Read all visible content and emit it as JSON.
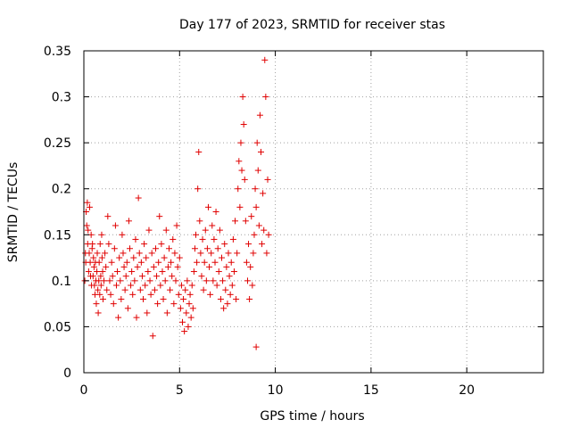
{
  "chart_data": {
    "type": "scatter",
    "title": "Day 177 of 2023, SRMTID for receiver stas",
    "xlabel": "GPS time / hours",
    "ylabel": "SRMTID / TECUs",
    "xlim": [
      0,
      24
    ],
    "ylim": [
      0,
      0.35
    ],
    "xticks": [
      0,
      5,
      10,
      15,
      20
    ],
    "xtick_labels": [
      "0",
      "5",
      "10",
      "15",
      "20"
    ],
    "yticks": [
      0,
      0.05,
      0.1,
      0.15,
      0.2,
      0.25,
      0.3,
      0.35
    ],
    "ytick_labels": [
      "0",
      "0.05",
      "0.1",
      "0.15",
      "0.2",
      "0.25",
      "0.3",
      "0.35"
    ],
    "grid": true,
    "legend": "none",
    "marker": "plus",
    "color": "#e00000",
    "series": [
      {
        "points": [
          [
            0.05,
            0.1
          ],
          [
            0.08,
            0.13
          ],
          [
            0.1,
            0.12
          ],
          [
            0.12,
            0.175
          ],
          [
            0.15,
            0.16
          ],
          [
            0.18,
            0.185
          ],
          [
            0.2,
            0.14
          ],
          [
            0.22,
            0.155
          ],
          [
            0.25,
            0.11
          ],
          [
            0.28,
            0.13
          ],
          [
            0.3,
            0.18
          ],
          [
            0.33,
            0.12
          ],
          [
            0.35,
            0.105
          ],
          [
            0.38,
            0.15
          ],
          [
            0.4,
            0.095
          ],
          [
            0.43,
            0.135
          ],
          [
            0.45,
            0.14
          ],
          [
            0.48,
            0.105
          ],
          [
            0.5,
            0.125
          ],
          [
            0.53,
            0.115
          ],
          [
            0.55,
            0.095
          ],
          [
            0.58,
            0.085
          ],
          [
            0.6,
            0.12
          ],
          [
            0.63,
            0.1
          ],
          [
            0.65,
            0.075
          ],
          [
            0.68,
            0.11
          ],
          [
            0.7,
            0.13
          ],
          [
            0.73,
            0.09
          ],
          [
            0.75,
            0.065
          ],
          [
            0.78,
            0.1
          ],
          [
            0.8,
            0.12
          ],
          [
            0.83,
            0.085
          ],
          [
            0.85,
            0.14
          ],
          [
            0.88,
            0.105
          ],
          [
            0.9,
            0.095
          ],
          [
            0.93,
            0.15
          ],
          [
            0.95,
            0.125
          ],
          [
            0.98,
            0.11
          ],
          [
            1.0,
            0.08
          ],
          [
            1.05,
            0.1
          ],
          [
            1.1,
            0.13
          ],
          [
            1.15,
            0.115
          ],
          [
            1.2,
            0.09
          ],
          [
            1.25,
            0.17
          ],
          [
            1.3,
            0.14
          ],
          [
            1.35,
            0.1
          ],
          [
            1.4,
            0.085
          ],
          [
            1.45,
            0.12
          ],
          [
            1.5,
            0.105
          ],
          [
            1.55,
            0.075
          ],
          [
            1.6,
            0.135
          ],
          [
            1.65,
            0.16
          ],
          [
            1.7,
            0.095
          ],
          [
            1.75,
            0.11
          ],
          [
            1.8,
            0.06
          ],
          [
            1.85,
            0.125
          ],
          [
            1.9,
            0.1
          ],
          [
            1.95,
            0.08
          ],
          [
            2.0,
            0.15
          ],
          [
            2.05,
            0.13
          ],
          [
            2.1,
            0.115
          ],
          [
            2.15,
            0.09
          ],
          [
            2.2,
            0.105
          ],
          [
            2.25,
            0.12
          ],
          [
            2.3,
            0.07
          ],
          [
            2.35,
            0.165
          ],
          [
            2.4,
            0.135
          ],
          [
            2.45,
            0.095
          ],
          [
            2.5,
            0.11
          ],
          [
            2.55,
            0.085
          ],
          [
            2.6,
            0.125
          ],
          [
            2.65,
            0.1
          ],
          [
            2.7,
            0.145
          ],
          [
            2.75,
            0.06
          ],
          [
            2.8,
            0.115
          ],
          [
            2.85,
            0.19
          ],
          [
            2.9,
            0.13
          ],
          [
            2.95,
            0.09
          ],
          [
            3.0,
            0.12
          ],
          [
            3.05,
            0.105
          ],
          [
            3.1,
            0.08
          ],
          [
            3.15,
            0.14
          ],
          [
            3.2,
            0.095
          ],
          [
            3.25,
            0.125
          ],
          [
            3.3,
            0.065
          ],
          [
            3.35,
            0.11
          ],
          [
            3.4,
            0.155
          ],
          [
            3.45,
            0.1
          ],
          [
            3.5,
            0.085
          ],
          [
            3.55,
            0.13
          ],
          [
            3.6,
            0.04
          ],
          [
            3.65,
            0.115
          ],
          [
            3.7,
            0.09
          ],
          [
            3.75,
            0.135
          ],
          [
            3.8,
            0.105
          ],
          [
            3.85,
            0.075
          ],
          [
            3.9,
            0.12
          ],
          [
            3.95,
            0.17
          ],
          [
            4.0,
            0.095
          ],
          [
            4.05,
            0.14
          ],
          [
            4.1,
            0.11
          ],
          [
            4.15,
            0.08
          ],
          [
            4.2,
            0.125
          ],
          [
            4.25,
            0.1
          ],
          [
            4.3,
            0.155
          ],
          [
            4.35,
            0.065
          ],
          [
            4.4,
            0.115
          ],
          [
            4.45,
            0.135
          ],
          [
            4.5,
            0.09
          ],
          [
            4.55,
            0.12
          ],
          [
            4.6,
            0.105
          ],
          [
            4.65,
            0.145
          ],
          [
            4.7,
            0.075
          ],
          [
            4.75,
            0.13
          ],
          [
            4.8,
            0.1
          ],
          [
            4.85,
            0.16
          ],
          [
            4.9,
            0.115
          ],
          [
            4.95,
            0.085
          ],
          [
            5.0,
            0.125
          ],
          [
            5.05,
            0.07
          ],
          [
            5.1,
            0.095
          ],
          [
            5.15,
            0.055
          ],
          [
            5.2,
            0.08
          ],
          [
            5.25,
            0.045
          ],
          [
            5.3,
            0.09
          ],
          [
            5.35,
            0.065
          ],
          [
            5.4,
            0.1
          ],
          [
            5.45,
            0.05
          ],
          [
            5.5,
            0.075
          ],
          [
            5.55,
            0.085
          ],
          [
            5.6,
            0.06
          ],
          [
            5.65,
            0.095
          ],
          [
            5.7,
            0.07
          ],
          [
            5.75,
            0.11
          ],
          [
            5.8,
            0.135
          ],
          [
            5.85,
            0.15
          ],
          [
            5.9,
            0.12
          ],
          [
            5.95,
            0.2
          ],
          [
            6.0,
            0.24
          ],
          [
            6.05,
            0.165
          ],
          [
            6.1,
            0.13
          ],
          [
            6.15,
            0.105
          ],
          [
            6.2,
            0.145
          ],
          [
            6.25,
            0.09
          ],
          [
            6.3,
            0.12
          ],
          [
            6.35,
            0.155
          ],
          [
            6.4,
            0.1
          ],
          [
            6.45,
            0.135
          ],
          [
            6.5,
            0.18
          ],
          [
            6.55,
            0.115
          ],
          [
            6.6,
            0.085
          ],
          [
            6.65,
            0.13
          ],
          [
            6.7,
            0.16
          ],
          [
            6.75,
            0.1
          ],
          [
            6.8,
            0.145
          ],
          [
            6.85,
            0.12
          ],
          [
            6.9,
            0.175
          ],
          [
            6.95,
            0.095
          ],
          [
            7.0,
            0.135
          ],
          [
            7.05,
            0.11
          ],
          [
            7.1,
            0.155
          ],
          [
            7.15,
            0.08
          ],
          [
            7.2,
            0.125
          ],
          [
            7.25,
            0.1
          ],
          [
            7.3,
            0.07
          ],
          [
            7.35,
            0.14
          ],
          [
            7.4,
            0.09
          ],
          [
            7.45,
            0.115
          ],
          [
            7.5,
            0.075
          ],
          [
            7.55,
            0.13
          ],
          [
            7.6,
            0.105
          ],
          [
            7.65,
            0.085
          ],
          [
            7.7,
            0.12
          ],
          [
            7.75,
            0.095
          ],
          [
            7.8,
            0.145
          ],
          [
            7.85,
            0.11
          ],
          [
            7.9,
            0.165
          ],
          [
            7.95,
            0.08
          ],
          [
            8.0,
            0.13
          ],
          [
            8.05,
            0.2
          ],
          [
            8.1,
            0.23
          ],
          [
            8.15,
            0.18
          ],
          [
            8.2,
            0.25
          ],
          [
            8.25,
            0.22
          ],
          [
            8.3,
            0.3
          ],
          [
            8.35,
            0.27
          ],
          [
            8.4,
            0.21
          ],
          [
            8.45,
            0.165
          ],
          [
            8.5,
            0.12
          ],
          [
            8.55,
            0.1
          ],
          [
            8.6,
            0.14
          ],
          [
            8.65,
            0.08
          ],
          [
            8.7,
            0.115
          ],
          [
            8.75,
            0.17
          ],
          [
            8.8,
            0.095
          ],
          [
            8.85,
            0.13
          ],
          [
            8.9,
            0.15
          ],
          [
            8.95,
            0.2
          ],
          [
            9.0,
            0.18
          ],
          [
            9.05,
            0.25
          ],
          [
            9.1,
            0.22
          ],
          [
            9.15,
            0.16
          ],
          [
            9.2,
            0.28
          ],
          [
            9.25,
            0.24
          ],
          [
            9.3,
            0.14
          ],
          [
            9.35,
            0.195
          ],
          [
            9.4,
            0.155
          ],
          [
            9.45,
            0.34
          ],
          [
            9.5,
            0.3
          ],
          [
            9.55,
            0.13
          ],
          [
            9.6,
            0.21
          ],
          [
            9.0,
            0.028
          ],
          [
            9.65,
            0.15
          ]
        ]
      }
    ]
  }
}
